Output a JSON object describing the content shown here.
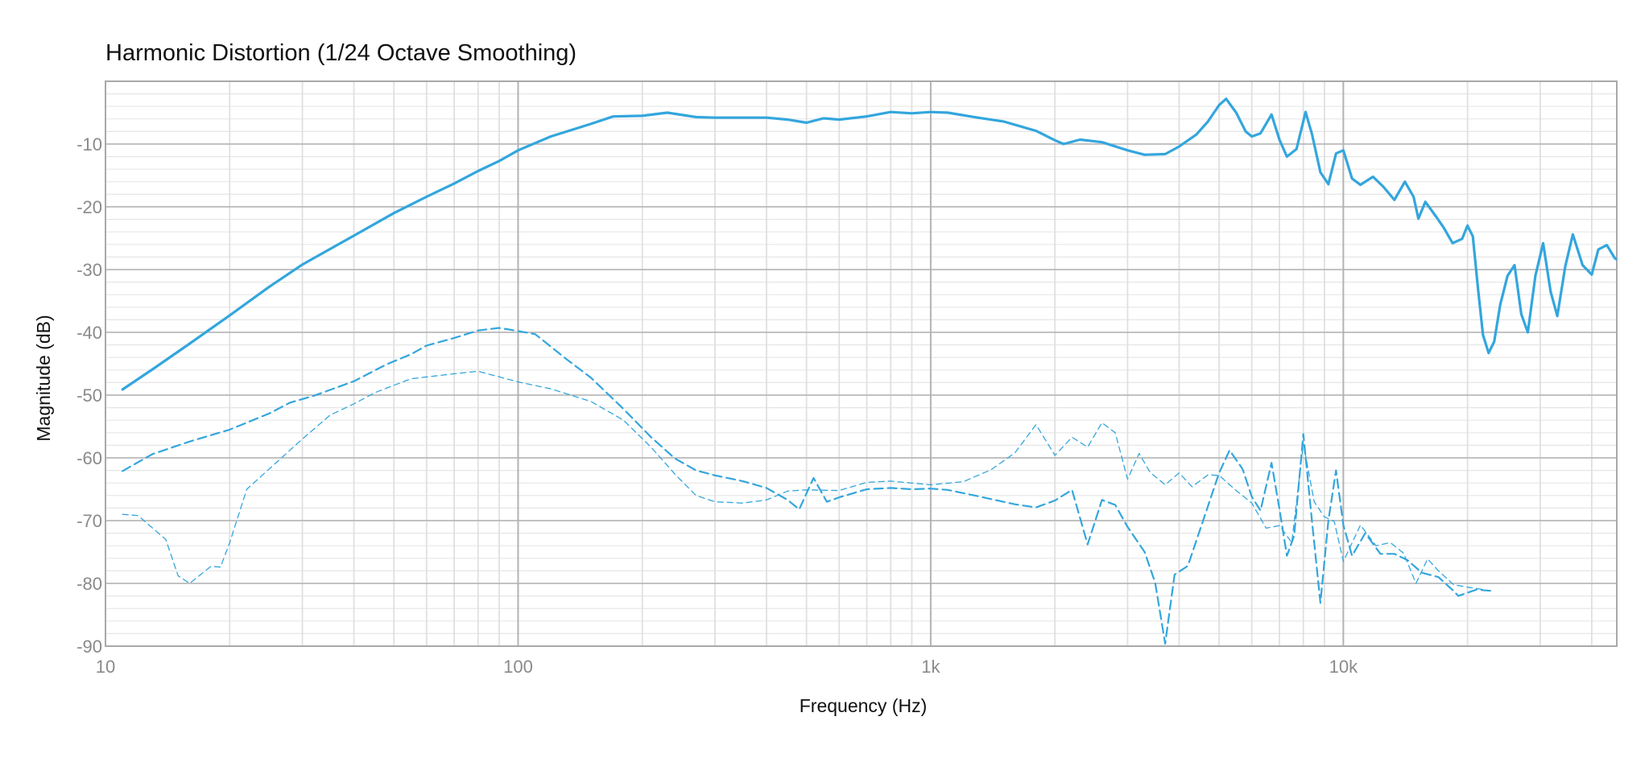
{
  "chart_data": {
    "type": "line",
    "title": "Harmonic Distortion",
    "subtitle": "(1/24 Octave Smoothing)",
    "xlabel": "Frequency (Hz)",
    "ylabel": "Magnitude (dB)",
    "x_scale": "log",
    "xlim": [
      10,
      46000
    ],
    "ylim": [
      -90,
      0
    ],
    "grid": true,
    "line_color": "#33a6dd",
    "x_ticks": [
      {
        "v": 10,
        "label": "10"
      },
      {
        "v": 100,
        "label": "100"
      },
      {
        "v": 1000,
        "label": "1k"
      },
      {
        "v": 10000,
        "label": "10k"
      }
    ],
    "y_ticks": [
      {
        "v": -10,
        "label": "-10"
      },
      {
        "v": -20,
        "label": "-20"
      },
      {
        "v": -30,
        "label": "-30"
      },
      {
        "v": -40,
        "label": "-40"
      },
      {
        "v": -50,
        "label": "-50"
      },
      {
        "v": -60,
        "label": "-60"
      },
      {
        "v": -70,
        "label": "-70"
      },
      {
        "v": -80,
        "label": "-80"
      },
      {
        "v": -90,
        "label": "-90"
      }
    ],
    "series": [
      {
        "style": "solid",
        "points": [
          [
            11,
            -49.1
          ],
          [
            13,
            -45.9
          ],
          [
            16,
            -41.8
          ],
          [
            20,
            -37.3
          ],
          [
            25,
            -32.7
          ],
          [
            30,
            -29.2
          ],
          [
            40,
            -24.6
          ],
          [
            50,
            -21.0
          ],
          [
            60,
            -18.4
          ],
          [
            70,
            -16.3
          ],
          [
            80,
            -14.3
          ],
          [
            90,
            -12.7
          ],
          [
            100,
            -11.0
          ],
          [
            120,
            -8.8
          ],
          [
            150,
            -6.8
          ],
          [
            170,
            -5.6
          ],
          [
            200,
            -5.5
          ],
          [
            230,
            -5.0
          ],
          [
            270,
            -5.7
          ],
          [
            300,
            -5.8
          ],
          [
            350,
            -5.8
          ],
          [
            400,
            -5.8
          ],
          [
            450,
            -6.1
          ],
          [
            500,
            -6.6
          ],
          [
            550,
            -5.9
          ],
          [
            600,
            -6.1
          ],
          [
            700,
            -5.6
          ],
          [
            800,
            -4.9
          ],
          [
            900,
            -5.1
          ],
          [
            1000,
            -4.9
          ],
          [
            1100,
            -5.0
          ],
          [
            1300,
            -5.8
          ],
          [
            1500,
            -6.4
          ],
          [
            1800,
            -7.9
          ],
          [
            2000,
            -9.4
          ],
          [
            2100,
            -10.0
          ],
          [
            2300,
            -9.3
          ],
          [
            2600,
            -9.7
          ],
          [
            3000,
            -11.0
          ],
          [
            3300,
            -11.7
          ],
          [
            3700,
            -11.6
          ],
          [
            4000,
            -10.4
          ],
          [
            4400,
            -8.5
          ],
          [
            4700,
            -6.4
          ],
          [
            5000,
            -3.8
          ],
          [
            5200,
            -2.8
          ],
          [
            5500,
            -5.0
          ],
          [
            5800,
            -8.0
          ],
          [
            6000,
            -8.8
          ],
          [
            6300,
            -8.3
          ],
          [
            6700,
            -5.3
          ],
          [
            7000,
            -9.3
          ],
          [
            7300,
            -12.0
          ],
          [
            7700,
            -10.8
          ],
          [
            8100,
            -4.9
          ],
          [
            8400,
            -8.5
          ],
          [
            8800,
            -14.5
          ],
          [
            9200,
            -16.4
          ],
          [
            9600,
            -11.5
          ],
          [
            10000,
            -11.0
          ],
          [
            10500,
            -15.5
          ],
          [
            11000,
            -16.5
          ],
          [
            11800,
            -15.2
          ],
          [
            12500,
            -16.8
          ],
          [
            13300,
            -18.9
          ],
          [
            14100,
            -16.0
          ],
          [
            14800,
            -18.4
          ],
          [
            15200,
            -21.9
          ],
          [
            15800,
            -19.2
          ],
          [
            16800,
            -21.6
          ],
          [
            17500,
            -23.3
          ],
          [
            18400,
            -25.8
          ],
          [
            19400,
            -25.1
          ],
          [
            20000,
            -23.0
          ],
          [
            20600,
            -24.7
          ],
          [
            21200,
            -33.0
          ],
          [
            21800,
            -40.4
          ],
          [
            22500,
            -43.3
          ],
          [
            23200,
            -41.5
          ],
          [
            24000,
            -35.6
          ],
          [
            25000,
            -31.0
          ],
          [
            26000,
            -29.3
          ],
          [
            27000,
            -37.1
          ],
          [
            28000,
            -40.0
          ],
          [
            29200,
            -31.0
          ],
          [
            30500,
            -25.8
          ],
          [
            31800,
            -33.5
          ],
          [
            33000,
            -37.4
          ],
          [
            34500,
            -29.5
          ],
          [
            36000,
            -24.4
          ],
          [
            38000,
            -29.3
          ],
          [
            40000,
            -30.8
          ],
          [
            41500,
            -26.8
          ],
          [
            43500,
            -26.1
          ],
          [
            45500,
            -28.2
          ],
          [
            47500,
            -28.8
          ],
          [
            50000,
            -26.0
          ]
        ]
      },
      {
        "style": "dashed",
        "points": [
          [
            11,
            -62.1
          ],
          [
            13,
            -59.4
          ],
          [
            16,
            -57.4
          ],
          [
            20,
            -55.5
          ],
          [
            25,
            -52.9
          ],
          [
            28,
            -51.2
          ],
          [
            32,
            -50.1
          ],
          [
            40,
            -47.8
          ],
          [
            48,
            -45.1
          ],
          [
            55,
            -43.5
          ],
          [
            60,
            -42.1
          ],
          [
            70,
            -40.9
          ],
          [
            80,
            -39.7
          ],
          [
            90,
            -39.3
          ],
          [
            100,
            -39.8
          ],
          [
            110,
            -40.3
          ],
          [
            130,
            -44.1
          ],
          [
            150,
            -47.2
          ],
          [
            180,
            -52.2
          ],
          [
            210,
            -56.7
          ],
          [
            240,
            -60.1
          ],
          [
            270,
            -62.0
          ],
          [
            300,
            -62.8
          ],
          [
            350,
            -63.7
          ],
          [
            400,
            -64.8
          ],
          [
            450,
            -66.7
          ],
          [
            480,
            -68.2
          ],
          [
            520,
            -63.2
          ],
          [
            560,
            -67.0
          ],
          [
            600,
            -66.3
          ],
          [
            700,
            -65.0
          ],
          [
            800,
            -64.8
          ],
          [
            900,
            -65.0
          ],
          [
            1000,
            -64.9
          ],
          [
            1100,
            -65.1
          ],
          [
            1300,
            -66.1
          ],
          [
            1600,
            -67.4
          ],
          [
            1800,
            -67.9
          ],
          [
            2000,
            -66.8
          ],
          [
            2200,
            -65.1
          ],
          [
            2400,
            -73.8
          ],
          [
            2600,
            -66.7
          ],
          [
            2800,
            -67.5
          ],
          [
            3000,
            -71.0
          ],
          [
            3300,
            -75.0
          ],
          [
            3500,
            -79.9
          ],
          [
            3700,
            -89.6
          ],
          [
            3900,
            -78.6
          ],
          [
            4200,
            -77.2
          ],
          [
            4600,
            -69.5
          ],
          [
            5000,
            -62.4
          ],
          [
            5300,
            -58.8
          ],
          [
            5700,
            -61.8
          ],
          [
            6000,
            -66.2
          ],
          [
            6300,
            -68.4
          ],
          [
            6700,
            -60.8
          ],
          [
            7000,
            -68.1
          ],
          [
            7300,
            -75.6
          ],
          [
            7600,
            -72.4
          ],
          [
            8000,
            -56.2
          ],
          [
            8400,
            -70.3
          ],
          [
            8800,
            -83.1
          ],
          [
            9200,
            -70.0
          ],
          [
            9600,
            -62.0
          ],
          [
            10000,
            -70.7
          ],
          [
            10500,
            -75.6
          ],
          [
            11300,
            -72.0
          ],
          [
            12300,
            -75.3
          ],
          [
            13300,
            -75.3
          ],
          [
            14300,
            -76.3
          ],
          [
            15500,
            -78.3
          ],
          [
            17000,
            -79.0
          ],
          [
            18500,
            -81.2
          ],
          [
            19000,
            -82.0
          ],
          [
            21000,
            -81.0
          ],
          [
            23000,
            -81.2
          ]
        ]
      },
      {
        "style": "fine-dashed",
        "points": [
          [
            11,
            -69.0
          ],
          [
            12,
            -69.2
          ],
          [
            14,
            -73.0
          ],
          [
            15,
            -78.8
          ],
          [
            16,
            -80.0
          ],
          [
            18,
            -77.3
          ],
          [
            19,
            -77.4
          ],
          [
            20,
            -73.5
          ],
          [
            22,
            -65.0
          ],
          [
            25,
            -61.7
          ],
          [
            30,
            -57.0
          ],
          [
            35,
            -53.2
          ],
          [
            40,
            -51.4
          ],
          [
            45,
            -49.6
          ],
          [
            55,
            -47.4
          ],
          [
            70,
            -46.6
          ],
          [
            80,
            -46.2
          ],
          [
            100,
            -47.9
          ],
          [
            120,
            -49.0
          ],
          [
            150,
            -51.0
          ],
          [
            180,
            -54.0
          ],
          [
            210,
            -58.3
          ],
          [
            240,
            -62.6
          ],
          [
            270,
            -66.0
          ],
          [
            300,
            -67.0
          ],
          [
            350,
            -67.2
          ],
          [
            400,
            -66.7
          ],
          [
            450,
            -65.3
          ],
          [
            500,
            -65.1
          ],
          [
            600,
            -65.2
          ],
          [
            700,
            -63.9
          ],
          [
            800,
            -63.7
          ],
          [
            1000,
            -64.3
          ],
          [
            1200,
            -63.8
          ],
          [
            1400,
            -61.9
          ],
          [
            1600,
            -59.2
          ],
          [
            1800,
            -54.7
          ],
          [
            2000,
            -59.6
          ],
          [
            2200,
            -56.7
          ],
          [
            2400,
            -58.3
          ],
          [
            2600,
            -54.4
          ],
          [
            2800,
            -56.0
          ],
          [
            3000,
            -63.4
          ],
          [
            3200,
            -59.3
          ],
          [
            3400,
            -62.3
          ],
          [
            3700,
            -64.3
          ],
          [
            4000,
            -62.4
          ],
          [
            4300,
            -64.6
          ],
          [
            4700,
            -62.7
          ],
          [
            5000,
            -62.8
          ],
          [
            5500,
            -65.2
          ],
          [
            6000,
            -67.2
          ],
          [
            6500,
            -71.2
          ],
          [
            7000,
            -70.8
          ],
          [
            7500,
            -73.5
          ],
          [
            8000,
            -57.7
          ],
          [
            8500,
            -67.0
          ],
          [
            9000,
            -69.4
          ],
          [
            9500,
            -70.1
          ],
          [
            10000,
            -76.5
          ],
          [
            11000,
            -70.7
          ],
          [
            12000,
            -74.0
          ],
          [
            13000,
            -73.5
          ],
          [
            14000,
            -75.2
          ],
          [
            15000,
            -80.0
          ],
          [
            16000,
            -76.1
          ],
          [
            17000,
            -78.0
          ],
          [
            18500,
            -80.2
          ],
          [
            20000,
            -80.6
          ],
          [
            22000,
            -81.0
          ]
        ]
      }
    ]
  }
}
